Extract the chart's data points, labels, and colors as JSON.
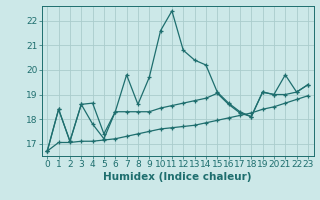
{
  "xlabel": "Humidex (Indice chaleur)",
  "xlim": [
    -0.5,
    23.5
  ],
  "ylim": [
    16.5,
    22.6
  ],
  "yticks": [
    17,
    18,
    19,
    20,
    21,
    22
  ],
  "xticks": [
    0,
    1,
    2,
    3,
    4,
    5,
    6,
    7,
    8,
    9,
    10,
    11,
    12,
    13,
    14,
    15,
    16,
    17,
    18,
    19,
    20,
    21,
    22,
    23
  ],
  "bg_color": "#cce8e8",
  "grid_color": "#aacccc",
  "line_color": "#1e6e6e",
  "line1_y": [
    16.7,
    18.4,
    17.1,
    18.6,
    17.8,
    17.2,
    18.3,
    19.8,
    18.6,
    19.7,
    21.6,
    22.4,
    20.8,
    20.4,
    20.2,
    19.1,
    18.65,
    18.3,
    18.1,
    19.1,
    19.0,
    19.8,
    19.1,
    19.4
  ],
  "line2_y": [
    16.7,
    17.05,
    17.05,
    17.1,
    17.1,
    17.15,
    17.2,
    17.3,
    17.4,
    17.5,
    17.6,
    17.65,
    17.7,
    17.75,
    17.85,
    17.95,
    18.05,
    18.15,
    18.25,
    18.4,
    18.5,
    18.65,
    18.8,
    18.95
  ],
  "line3_y": [
    16.7,
    18.4,
    17.1,
    18.6,
    18.65,
    17.4,
    18.3,
    18.3,
    18.3,
    18.3,
    18.45,
    18.55,
    18.65,
    18.75,
    18.85,
    19.05,
    18.6,
    18.25,
    18.1,
    19.1,
    19.0,
    19.0,
    19.1,
    19.4
  ],
  "font_color": "#1e6e6e",
  "tick_fontsize": 6.5,
  "label_fontsize": 7.5
}
